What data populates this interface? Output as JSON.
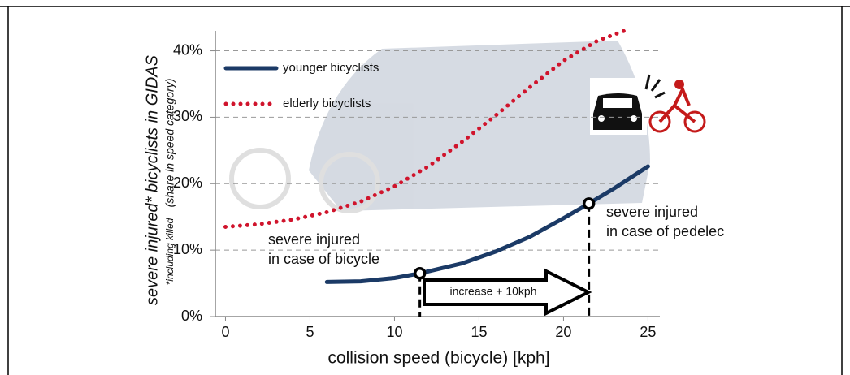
{
  "chart_data": {
    "type": "line",
    "ylabel": "severe injured* bicyclists in GIDAS",
    "ylabel_note": "*including killed",
    "ylabel_sub": "(share in speed category)",
    "xlabel": "collision speed (bicycle) [kph]",
    "xlim": [
      -0.6,
      25.7
    ],
    "xticks": [
      0,
      5,
      10,
      15,
      20,
      25
    ],
    "ylim": [
      0,
      43
    ],
    "yticks": [
      {
        "value": 0,
        "label": "0%"
      },
      {
        "value": 10,
        "label": "10%"
      },
      {
        "value": 20,
        "label": "20%"
      },
      {
        "value": 30,
        "label": "30%"
      },
      {
        "value": 40,
        "label": "40%"
      }
    ],
    "grid": true,
    "legend": "top-left",
    "series": [
      {
        "name": "younger bicyclists",
        "color": "#1b3a66",
        "style": "solid",
        "x": [
          6,
          8,
          10,
          11.5,
          14,
          16,
          18,
          20,
          21.5,
          23,
          25
        ],
        "values": [
          5.2,
          5.3,
          5.8,
          6.5,
          8,
          9.8,
          12,
          14.8,
          17,
          19.3,
          22.6
        ]
      },
      {
        "name": "elderly bicyclists",
        "color": "#d0142c",
        "style": "dotted",
        "x": [
          0,
          2,
          4,
          6,
          8,
          10,
          12,
          14,
          16,
          18,
          20,
          22,
          23.9
        ],
        "values": [
          13.5,
          13.9,
          14.6,
          15.7,
          17.3,
          19.6,
          22.6,
          26.3,
          30.3,
          34.5,
          38.5,
          41.5,
          43.3
        ]
      }
    ],
    "marked_x": [
      11.5,
      21.5
    ],
    "annotations": [
      {
        "lines": [
          "severe injured",
          "in case of bicycle"
        ]
      },
      {
        "lines": [
          "severe injured",
          "in case of pedelec"
        ]
      },
      {
        "lines": [
          "increase + 10kph"
        ]
      }
    ]
  }
}
